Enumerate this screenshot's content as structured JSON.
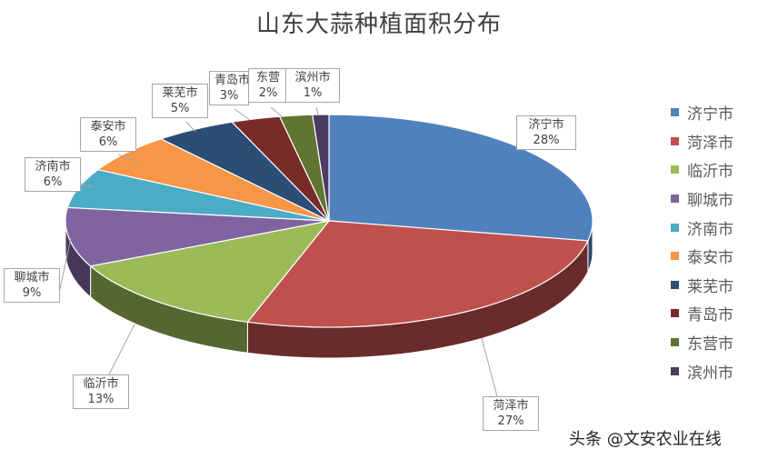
{
  "chart_data": {
    "type": "pie",
    "title": "山东大蒜种植面积分布",
    "categories": [
      "济宁市",
      "菏泽市",
      "临沂市",
      "聊城市",
      "济南市",
      "泰安市",
      "莱芜市",
      "青岛市",
      "东营市",
      "滨州市"
    ],
    "values": [
      28,
      27,
      13,
      9,
      6,
      6,
      5,
      3,
      2,
      1
    ],
    "data_labels": [
      "28%",
      "27%",
      "13%",
      "9%",
      "6%",
      "6%",
      "5%",
      "3%",
      "2%",
      "1%"
    ],
    "colors": [
      "#4f81bd",
      "#c0504d",
      "#9bbb59",
      "#8064a2",
      "#4bacc6",
      "#f79646",
      "#2c4d75",
      "#772c2a",
      "#5f7530",
      "#4d3b62"
    ],
    "legend_position": "right",
    "style": "3d"
  },
  "legend_visible_labels": [
    "济宁市",
    "菏泽市",
    "临沂市",
    "聊城市",
    "济南市",
    "泰安市",
    "莱芜市",
    "青岛市",
    "东营市",
    "滨州市"
  ],
  "callout_labels": [
    "济宁市",
    "菏泽市",
    "临沂市",
    "聊城市",
    "济南市",
    "泰安市",
    "莱芜市",
    "青岛市",
    "东营",
    "滨州市"
  ],
  "watermark": "头条 @文安农业在线"
}
